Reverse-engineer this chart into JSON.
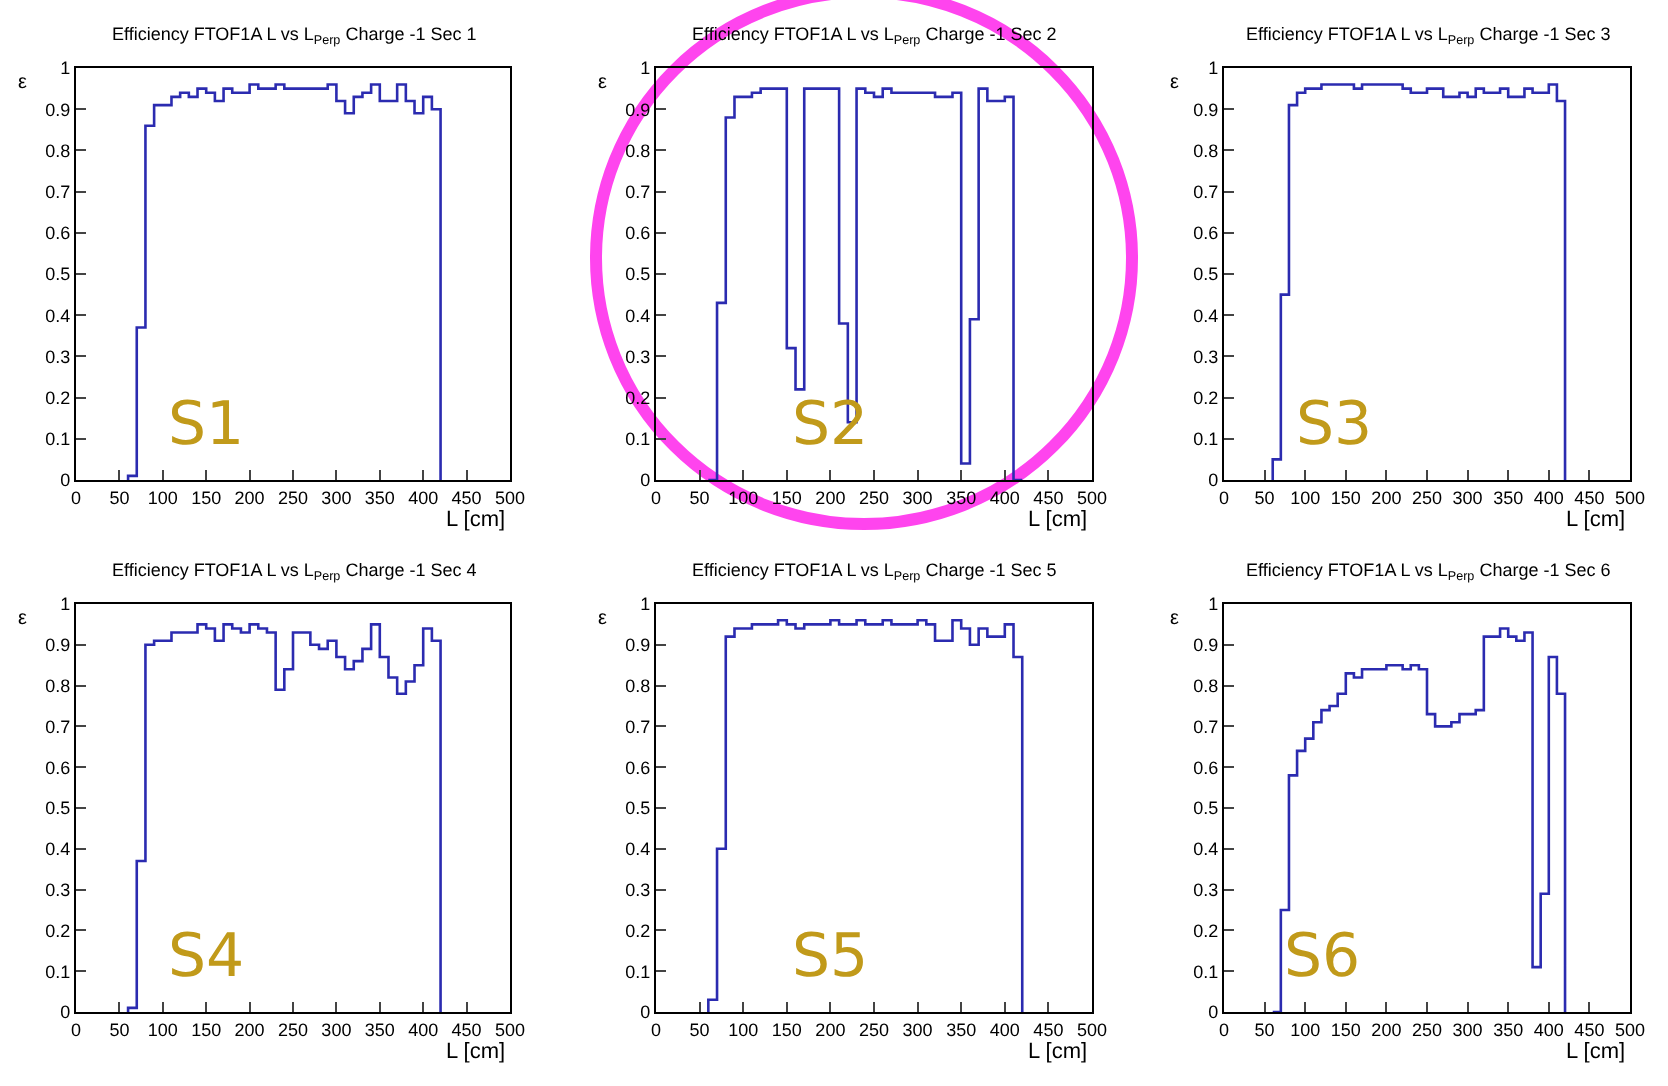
{
  "chart_data": [
    {
      "type": "histogram",
      "title": "Efficiency FTOF1A L vs L$_{Perp}$ Charge -1 Sec 1",
      "xlabel": "L [cm]",
      "ylabel": "ε",
      "color": "#2b2bb0",
      "xlim": [
        0,
        500
      ],
      "ylim": [
        0,
        1
      ],
      "xticks": [
        0,
        50,
        100,
        150,
        200,
        250,
        300,
        350,
        400,
        450,
        500
      ],
      "yticks": [
        0,
        0.1,
        0.2,
        0.3,
        0.4,
        0.5,
        0.6,
        0.7,
        0.8,
        0.9,
        1
      ],
      "annotations": [
        "S1"
      ],
      "bins": [
        60,
        70,
        80,
        90,
        100,
        110,
        120,
        130,
        140,
        150,
        160,
        170,
        180,
        190,
        200,
        210,
        220,
        230,
        240,
        250,
        260,
        270,
        280,
        290,
        300,
        310,
        320,
        330,
        340,
        350,
        360,
        370,
        380,
        390,
        400,
        410,
        420
      ],
      "values": [
        0.01,
        0.37,
        0.86,
        0.91,
        0.91,
        0.93,
        0.94,
        0.93,
        0.95,
        0.94,
        0.92,
        0.95,
        0.94,
        0.94,
        0.96,
        0.95,
        0.95,
        0.96,
        0.95,
        0.95,
        0.95,
        0.95,
        0.95,
        0.96,
        0.92,
        0.89,
        0.93,
        0.94,
        0.96,
        0.92,
        0.92,
        0.96,
        0.92,
        0.89,
        0.93,
        0.9
      ]
    },
    {
      "type": "histogram",
      "title": "Efficiency FTOF1A L vs L$_{Perp}$ Charge -1 Sec 2",
      "xlabel": "L [cm]",
      "ylabel": "ε",
      "color": "#2b2bb0",
      "xlim": [
        0,
        500
      ],
      "ylim": [
        0,
        1
      ],
      "xticks": [
        0,
        50,
        100,
        150,
        200,
        250,
        300,
        350,
        400,
        450,
        500
      ],
      "yticks": [
        0,
        0.1,
        0.2,
        0.3,
        0.4,
        0.5,
        0.6,
        0.7,
        0.8,
        0.9,
        1
      ],
      "annotations": [
        "S2"
      ],
      "bins": [
        60,
        70,
        80,
        90,
        100,
        110,
        120,
        130,
        140,
        150,
        160,
        170,
        180,
        190,
        200,
        210,
        220,
        230,
        240,
        250,
        260,
        270,
        280,
        290,
        300,
        310,
        320,
        330,
        340,
        350,
        360,
        370,
        380,
        390,
        400,
        410,
        420
      ],
      "values": [
        0,
        0.43,
        0.88,
        0.93,
        0.93,
        0.94,
        0.95,
        0.95,
        0.95,
        0.32,
        0.22,
        0.95,
        0.95,
        0.95,
        0.95,
        0.38,
        0.14,
        0.95,
        0.94,
        0.93,
        0.95,
        0.94,
        0.94,
        0.94,
        0.94,
        0.94,
        0.93,
        0.93,
        0.94,
        0.04,
        0.39,
        0.95,
        0.92,
        0.92,
        0.93,
        0
      ]
    },
    {
      "type": "histogram",
      "title": "Efficiency FTOF1A L vs L$_{Perp}$ Charge -1 Sec 3",
      "xlabel": "L [cm]",
      "ylabel": "ε",
      "color": "#2b2bb0",
      "xlim": [
        0,
        500
      ],
      "ylim": [
        0,
        1
      ],
      "xticks": [
        0,
        50,
        100,
        150,
        200,
        250,
        300,
        350,
        400,
        450,
        500
      ],
      "yticks": [
        0,
        0.1,
        0.2,
        0.3,
        0.4,
        0.5,
        0.6,
        0.7,
        0.8,
        0.9,
        1
      ],
      "annotations": [
        "S3"
      ],
      "bins": [
        60,
        70,
        80,
        90,
        100,
        110,
        120,
        130,
        140,
        150,
        160,
        170,
        180,
        190,
        200,
        210,
        220,
        230,
        240,
        250,
        260,
        270,
        280,
        290,
        300,
        310,
        320,
        330,
        340,
        350,
        360,
        370,
        380,
        390,
        400,
        410,
        420
      ],
      "values": [
        0.05,
        0.45,
        0.91,
        0.94,
        0.95,
        0.95,
        0.96,
        0.96,
        0.96,
        0.96,
        0.95,
        0.96,
        0.96,
        0.96,
        0.96,
        0.96,
        0.95,
        0.94,
        0.94,
        0.95,
        0.95,
        0.93,
        0.93,
        0.94,
        0.93,
        0.95,
        0.94,
        0.94,
        0.95,
        0.93,
        0.93,
        0.95,
        0.94,
        0.94,
        0.96,
        0.92
      ]
    },
    {
      "type": "histogram",
      "title": "Efficiency FTOF1A L vs L$_{Perp}$ Charge -1 Sec 4",
      "xlabel": "L [cm]",
      "ylabel": "ε",
      "color": "#2b2bb0",
      "xlim": [
        0,
        500
      ],
      "ylim": [
        0,
        1
      ],
      "xticks": [
        0,
        50,
        100,
        150,
        200,
        250,
        300,
        350,
        400,
        450,
        500
      ],
      "yticks": [
        0,
        0.1,
        0.2,
        0.3,
        0.4,
        0.5,
        0.6,
        0.7,
        0.8,
        0.9,
        1
      ],
      "annotations": [
        "S4"
      ],
      "bins": [
        60,
        70,
        80,
        90,
        100,
        110,
        120,
        130,
        140,
        150,
        160,
        170,
        180,
        190,
        200,
        210,
        220,
        230,
        240,
        250,
        260,
        270,
        280,
        290,
        300,
        310,
        320,
        330,
        340,
        350,
        360,
        370,
        380,
        390,
        400,
        410,
        420
      ],
      "values": [
        0.01,
        0.37,
        0.9,
        0.91,
        0.91,
        0.93,
        0.93,
        0.93,
        0.95,
        0.94,
        0.91,
        0.95,
        0.94,
        0.93,
        0.95,
        0.94,
        0.93,
        0.79,
        0.84,
        0.93,
        0.93,
        0.9,
        0.89,
        0.91,
        0.87,
        0.84,
        0.86,
        0.89,
        0.95,
        0.87,
        0.82,
        0.78,
        0.81,
        0.85,
        0.94,
        0.91
      ]
    },
    {
      "type": "histogram",
      "title": "Efficiency FTOF1A L vs L$_{Perp}$ Charge -1 Sec 5",
      "xlabel": "L [cm]",
      "ylabel": "ε",
      "color": "#2b2bb0",
      "xlim": [
        0,
        500
      ],
      "ylim": [
        0,
        1
      ],
      "xticks": [
        0,
        50,
        100,
        150,
        200,
        250,
        300,
        350,
        400,
        450,
        500
      ],
      "yticks": [
        0,
        0.1,
        0.2,
        0.3,
        0.4,
        0.5,
        0.6,
        0.7,
        0.8,
        0.9,
        1
      ],
      "annotations": [
        "S5"
      ],
      "bins": [
        60,
        70,
        80,
        90,
        100,
        110,
        120,
        130,
        140,
        150,
        160,
        170,
        180,
        190,
        200,
        210,
        220,
        230,
        240,
        250,
        260,
        270,
        280,
        290,
        300,
        310,
        320,
        330,
        340,
        350,
        360,
        370,
        380,
        390,
        400,
        410,
        420
      ],
      "values": [
        0.03,
        0.4,
        0.92,
        0.94,
        0.94,
        0.95,
        0.95,
        0.95,
        0.96,
        0.95,
        0.94,
        0.95,
        0.95,
        0.95,
        0.96,
        0.95,
        0.95,
        0.96,
        0.95,
        0.95,
        0.96,
        0.95,
        0.95,
        0.95,
        0.96,
        0.95,
        0.91,
        0.91,
        0.96,
        0.94,
        0.9,
        0.94,
        0.92,
        0.92,
        0.95,
        0.87
      ]
    },
    {
      "type": "histogram",
      "title": "Efficiency FTOF1A L vs L$_{Perp}$ Charge -1 Sec 6",
      "xlabel": "L [cm]",
      "ylabel": "ε",
      "color": "#2b2bb0",
      "xlim": [
        0,
        500
      ],
      "ylim": [
        0,
        1
      ],
      "xticks": [
        0,
        50,
        100,
        150,
        200,
        250,
        300,
        350,
        400,
        450,
        500
      ],
      "yticks": [
        0,
        0.1,
        0.2,
        0.3,
        0.4,
        0.5,
        0.6,
        0.7,
        0.8,
        0.9,
        1
      ],
      "annotations": [
        "S6"
      ],
      "bins": [
        60,
        70,
        80,
        90,
        100,
        110,
        120,
        130,
        140,
        150,
        160,
        170,
        180,
        190,
        200,
        210,
        220,
        230,
        240,
        250,
        260,
        270,
        280,
        290,
        300,
        310,
        320,
        330,
        340,
        350,
        360,
        370,
        380,
        390,
        400,
        410,
        420
      ],
      "values": [
        0,
        0.25,
        0.58,
        0.64,
        0.67,
        0.71,
        0.74,
        0.75,
        0.78,
        0.83,
        0.82,
        0.84,
        0.84,
        0.84,
        0.85,
        0.85,
        0.84,
        0.85,
        0.84,
        0.73,
        0.7,
        0.7,
        0.71,
        0.73,
        0.73,
        0.74,
        0.92,
        0.92,
        0.94,
        0.92,
        0.91,
        0.93,
        0.11,
        0.29,
        0.87,
        0.78
      ]
    }
  ]
}
